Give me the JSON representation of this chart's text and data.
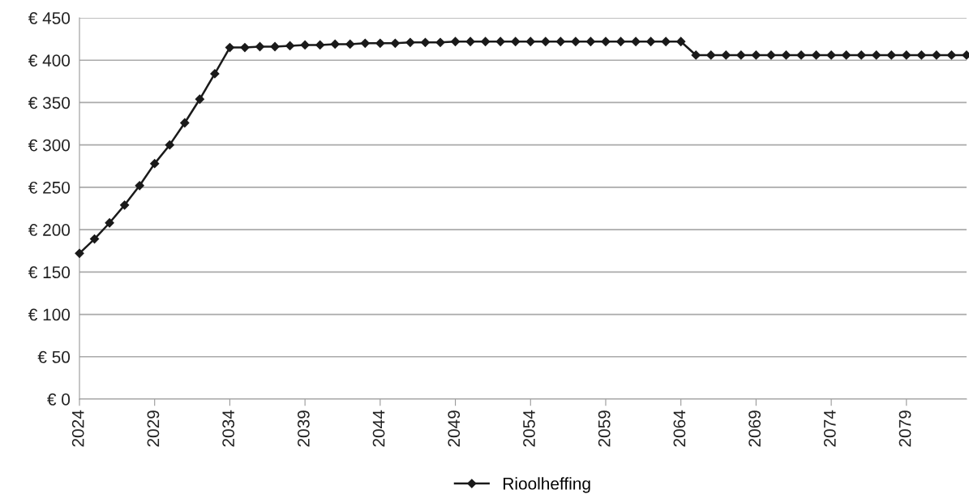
{
  "chart_data": {
    "type": "line",
    "x": [
      2024,
      2025,
      2026,
      2027,
      2028,
      2029,
      2030,
      2031,
      2032,
      2033,
      2034,
      2035,
      2036,
      2037,
      2038,
      2039,
      2040,
      2041,
      2042,
      2043,
      2044,
      2045,
      2046,
      2047,
      2048,
      2049,
      2050,
      2051,
      2052,
      2053,
      2054,
      2055,
      2056,
      2057,
      2058,
      2059,
      2060,
      2061,
      2062,
      2063,
      2064,
      2065,
      2066,
      2067,
      2068,
      2069,
      2070,
      2071,
      2072,
      2073,
      2074,
      2075,
      2076,
      2077,
      2078,
      2079,
      2080,
      2081,
      2082,
      2083
    ],
    "series": [
      {
        "name": "Rioolheffing",
        "color": "#1a1a1a",
        "values": [
          172,
          189,
          208,
          229,
          252,
          278,
          300,
          326,
          354,
          384,
          415,
          415,
          416,
          416,
          417,
          418,
          418,
          419,
          419,
          420,
          420,
          420,
          421,
          421,
          421,
          422,
          422,
          422,
          422,
          422,
          422,
          422,
          422,
          422,
          422,
          422,
          422,
          422,
          422,
          422,
          422,
          406,
          406,
          406,
          406,
          406,
          406,
          406,
          406,
          406,
          406,
          406,
          406,
          406,
          406,
          406,
          406,
          406,
          406,
          406
        ]
      }
    ],
    "xlim": [
      2024,
      2083
    ],
    "xticks": [
      2024,
      2029,
      2034,
      2039,
      2044,
      2049,
      2054,
      2059,
      2064,
      2069,
      2074,
      2079
    ],
    "ylim": [
      0,
      450
    ],
    "yticks": [
      {
        "value": 0,
        "label": "€ 0"
      },
      {
        "value": 50,
        "label": "€ 50"
      },
      {
        "value": 100,
        "label": "€ 100"
      },
      {
        "value": 150,
        "label": "€ 150"
      },
      {
        "value": 200,
        "label": "€ 200"
      },
      {
        "value": 250,
        "label": "€ 250"
      },
      {
        "value": 300,
        "label": "€ 300"
      },
      {
        "value": 350,
        "label": "€ 350"
      },
      {
        "value": 400,
        "label": "€ 400"
      },
      {
        "value": 450,
        "label": "€ 450"
      }
    ],
    "grid": "y",
    "legend": "bottom",
    "marker": "diamond",
    "line_style": "solid"
  }
}
